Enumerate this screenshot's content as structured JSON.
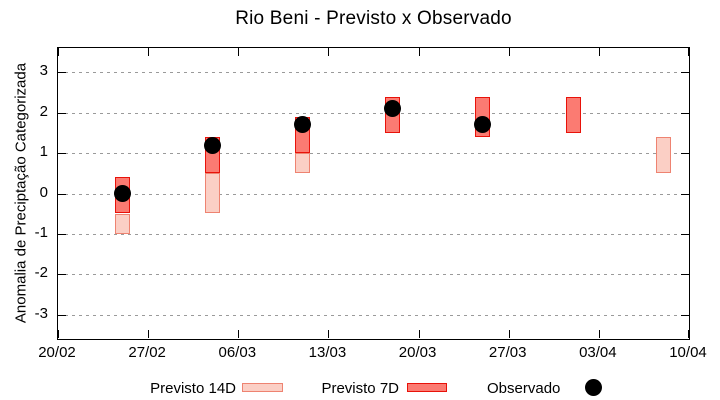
{
  "chart_data": {
    "type": "range-bar",
    "title": "Rio Beni - Previsto x Observado",
    "ylabel": "Anomalia de Preciptação Categorizada",
    "xlabel": "",
    "ylim": [
      -3.6,
      3.6
    ],
    "yticks": [
      -3,
      -2,
      -1,
      0,
      1,
      2,
      3
    ],
    "ytick_labels": [
      "-3",
      "-2",
      "-1",
      "0",
      "1",
      "2",
      "3"
    ],
    "xlim_days": [
      0,
      49
    ],
    "xtick_days": [
      0,
      7,
      14,
      21,
      28,
      35,
      42,
      49
    ],
    "xtick_labels": [
      "20/02",
      "27/02",
      "06/03",
      "13/03",
      "20/03",
      "27/03",
      "03/04",
      "10/04"
    ],
    "grid": "horizontal-dotted",
    "legend_position": "bottom",
    "colors": {
      "grid": "#9a9a9a",
      "frame": "#000000",
      "text": "#000000",
      "background": "#ffffff"
    },
    "series": [
      {
        "id": "p14",
        "name": "Previsto 14D",
        "type": "range",
        "fill": "#fbcfc5",
        "border": "#ee8371",
        "points": [
          {
            "date": "25/02",
            "day": 5,
            "low": -1.0,
            "high": -0.5
          },
          {
            "date": "04/03",
            "day": 12,
            "low": -0.5,
            "high": 0.5
          },
          {
            "date": "11/03",
            "day": 19,
            "low": 0.5,
            "high": 1.0
          },
          {
            "date": "08/04",
            "day": 47,
            "low": 0.5,
            "high": 1.4
          }
        ]
      },
      {
        "id": "p7",
        "name": "Previsto 7D",
        "type": "range",
        "fill": "#fb7b72",
        "border": "#e8120a",
        "points": [
          {
            "date": "25/02",
            "day": 5,
            "low": -0.5,
            "high": 0.4
          },
          {
            "date": "04/03",
            "day": 12,
            "low": 0.5,
            "high": 1.4
          },
          {
            "date": "11/03",
            "day": 19,
            "low": 1.0,
            "high": 1.9
          },
          {
            "date": "18/03",
            "day": 26,
            "low": 1.5,
            "high": 2.4
          },
          {
            "date": "25/03",
            "day": 33,
            "low": 1.4,
            "high": 2.4
          },
          {
            "date": "01/04",
            "day": 40,
            "low": 1.5,
            "high": 2.4
          }
        ]
      },
      {
        "id": "obs",
        "name": "Observado",
        "type": "point",
        "color": "#000000",
        "points": [
          {
            "date": "25/02",
            "day": 5,
            "value": 0.0
          },
          {
            "date": "04/03",
            "day": 12,
            "value": 1.2
          },
          {
            "date": "11/03",
            "day": 19,
            "value": 1.7
          },
          {
            "date": "18/03",
            "day": 26,
            "value": 2.1
          },
          {
            "date": "25/03",
            "day": 33,
            "value": 1.7
          }
        ]
      }
    ]
  }
}
